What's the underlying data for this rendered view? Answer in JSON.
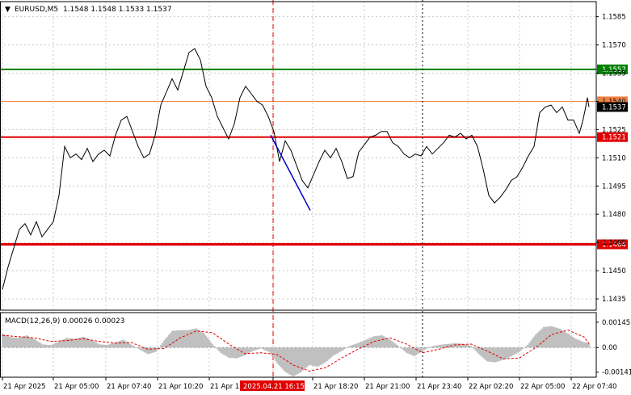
{
  "chart_data": [
    {
      "type": "line",
      "header": {
        "marker": "▼",
        "symbol": "EURUSD,M5",
        "ohlc": "1.1548 1.1548 1.1533 1.1537"
      },
      "price_axis": {
        "ticks": [
          "1.1585",
          "1.1570",
          "1.1555",
          "1.1540",
          "1.1525",
          "1.1510",
          "1.1495",
          "1.1480",
          "1.1465",
          "1.1450",
          "1.1435"
        ],
        "ylim": [
          1.1429,
          1.1593
        ]
      },
      "time_labels": [
        "21 Apr 2025",
        "21 Apr 05:00",
        "21 Apr 07:40",
        "21 Apr 10:20",
        "21 Apr 1",
        "2025.04.21 16:15",
        "21 Apr 18:20",
        "21 Apr 21:00",
        "21 Apr 23:40",
        "22 Apr 02:20",
        "22 Apr 05:00",
        "22 Apr 07:40"
      ],
      "cursor_time_label": "2025.04.21 16:15",
      "levels": [
        {
          "price": 1.1557,
          "label": "1.1557",
          "color": "#008000"
        },
        {
          "price": 1.154,
          "label": "1.1540",
          "color": "#f08040"
        },
        {
          "price": 1.1521,
          "label": "1.1521",
          "color": "#e00000"
        },
        {
          "price": 1.1464,
          "label": "1.1464",
          "color": "#e00000"
        }
      ],
      "current_price": {
        "price": 1.1537,
        "label": "1.1537"
      },
      "trend_line": {
        "from": {
          "bar": 335,
          "price": 1.1522
        },
        "to": {
          "bar": 384,
          "price": 1.1482
        },
        "color": "#0000cc"
      },
      "series": [
        {
          "name": "EURUSD,M5",
          "color": "#000000",
          "points": [
            [
              3,
              1.144
            ],
            [
              10,
              1.1452
            ],
            [
              17,
              1.1462
            ],
            [
              24,
              1.1472
            ],
            [
              31,
              1.1475
            ],
            [
              38,
              1.1469
            ],
            [
              45,
              1.1476
            ],
            [
              52,
              1.1468
            ],
            [
              59,
              1.1472
            ],
            [
              66,
              1.1476
            ],
            [
              73,
              1.149
            ],
            [
              80,
              1.1516
            ],
            [
              87,
              1.151
            ],
            [
              94,
              1.1512
            ],
            [
              101,
              1.1509
            ],
            [
              108,
              1.1515
            ],
            [
              115,
              1.1508
            ],
            [
              122,
              1.1512
            ],
            [
              129,
              1.1514
            ],
            [
              136,
              1.1511
            ],
            [
              143,
              1.1522
            ],
            [
              150,
              1.153
            ],
            [
              157,
              1.1532
            ],
            [
              164,
              1.1524
            ],
            [
              171,
              1.1516
            ],
            [
              178,
              1.151
            ],
            [
              185,
              1.1512
            ],
            [
              192,
              1.1522
            ],
            [
              199,
              1.1538
            ],
            [
              206,
              1.1545
            ],
            [
              213,
              1.1552
            ],
            [
              220,
              1.1546
            ],
            [
              227,
              1.1556
            ],
            [
              234,
              1.1566
            ],
            [
              241,
              1.1568
            ],
            [
              248,
              1.1562
            ],
            [
              255,
              1.1548
            ],
            [
              262,
              1.1542
            ],
            [
              269,
              1.1532
            ],
            [
              276,
              1.1526
            ],
            [
              283,
              1.152
            ],
            [
              290,
              1.1528
            ],
            [
              297,
              1.1542
            ],
            [
              304,
              1.1548
            ],
            [
              311,
              1.1544
            ],
            [
              318,
              1.154
            ],
            [
              325,
              1.1538
            ],
            [
              332,
              1.1532
            ],
            [
              339,
              1.1524
            ],
            [
              346,
              1.1508
            ],
            [
              353,
              1.1519
            ],
            [
              360,
              1.1514
            ],
            [
              367,
              1.1506
            ],
            [
              374,
              1.1498
            ],
            [
              381,
              1.1494
            ],
            [
              388,
              1.1501
            ],
            [
              395,
              1.1508
            ],
            [
              402,
              1.1514
            ],
            [
              409,
              1.151
            ],
            [
              416,
              1.1515
            ],
            [
              423,
              1.1508
            ],
            [
              430,
              1.1499
            ],
            [
              437,
              1.15
            ],
            [
              444,
              1.1513
            ],
            [
              451,
              1.1517
            ],
            [
              458,
              1.1521
            ],
            [
              465,
              1.1522
            ],
            [
              472,
              1.1524
            ],
            [
              479,
              1.1524
            ],
            [
              486,
              1.1518
            ],
            [
              493,
              1.1516
            ],
            [
              500,
              1.1512
            ],
            [
              507,
              1.151
            ],
            [
              514,
              1.1512
            ],
            [
              521,
              1.1511
            ],
            [
              528,
              1.1516
            ],
            [
              535,
              1.1512
            ],
            [
              542,
              1.1515
            ],
            [
              549,
              1.1518
            ],
            [
              556,
              1.1522
            ],
            [
              563,
              1.1521
            ],
            [
              570,
              1.1523
            ],
            [
              577,
              1.152
            ],
            [
              584,
              1.1522
            ],
            [
              591,
              1.1516
            ],
            [
              598,
              1.1504
            ],
            [
              605,
              1.149
            ],
            [
              612,
              1.1486
            ],
            [
              619,
              1.1489
            ],
            [
              626,
              1.1493
            ],
            [
              633,
              1.1498
            ],
            [
              640,
              1.15
            ],
            [
              647,
              1.1505
            ],
            [
              654,
              1.1511
            ],
            [
              661,
              1.1516
            ],
            [
              668,
              1.1534
            ],
            [
              675,
              1.1537
            ],
            [
              682,
              1.1538
            ],
            [
              689,
              1.1534
            ],
            [
              696,
              1.1537
            ],
            [
              703,
              1.153
            ],
            [
              710,
              1.153
            ],
            [
              717,
              1.1523
            ],
            [
              721,
              1.1529
            ],
            [
              724,
              1.1535
            ],
            [
              727,
              1.1542
            ],
            [
              729,
              1.1537
            ]
          ]
        }
      ]
    },
    {
      "type": "bar",
      "title": "MACD(12,26,9) 0.00026 0.00023",
      "y_ticks": [
        "0.00145",
        "0.00",
        "-0.00141"
      ],
      "ylim": [
        -0.0017,
        0.002
      ],
      "zero_line": 0,
      "series": [
        {
          "name": "MACD(12,26,9)",
          "color": "#c0c0c0",
          "points": [
            [
              3,
              0.00078
            ],
            [
              13,
              0.0006
            ],
            [
              23,
              0.00055
            ],
            [
              33,
              0.0007
            ],
            [
              43,
              0.00047
            ],
            [
              53,
              0.00018
            ],
            [
              63,
              0.00014
            ],
            [
              73,
              0.00035
            ],
            [
              83,
              0.00055
            ],
            [
              93,
              0.0005
            ],
            [
              103,
              0.00062
            ],
            [
              113,
              0.00045
            ],
            [
              123,
              0.00018
            ],
            [
              133,
              0.00015
            ],
            [
              143,
              0.0003
            ],
            [
              153,
              0.00045
            ],
            [
              163,
              0.00015
            ],
            [
              173,
              -0.00012
            ],
            [
              183,
              -0.00038
            ],
            [
              193,
              -0.00025
            ],
            [
              203,
              0.0004
            ],
            [
              213,
              0.00095
            ],
            [
              223,
              0.001
            ],
            [
              233,
              0.001
            ],
            [
              243,
              0.0011
            ],
            [
              253,
              0.0008
            ],
            [
              263,
              0.0002
            ],
            [
              273,
              -0.0003
            ],
            [
              283,
              -0.00058
            ],
            [
              293,
              -0.00062
            ],
            [
              303,
              -0.00045
            ],
            [
              313,
              -0.0002
            ],
            [
              323,
              -5e-05
            ],
            [
              333,
              -0.00025
            ],
            [
              343,
              -0.0009
            ],
            [
              353,
              -0.0014
            ],
            [
              363,
              -0.00165
            ],
            [
              373,
              -0.0014
            ],
            [
              383,
              -0.001
            ],
            [
              393,
              -0.0011
            ],
            [
              403,
              -0.00085
            ],
            [
              413,
              -0.00045
            ],
            [
              423,
              -0.0002
            ],
            [
              433,
              0.0001
            ],
            [
              443,
              0.00025
            ],
            [
              453,
              0.00045
            ],
            [
              463,
              0.00065
            ],
            [
              473,
              0.0007
            ],
            [
              483,
              0.00045
            ],
            [
              493,
              0.0001
            ],
            [
              503,
              -0.0003
            ],
            [
              513,
              -0.0005
            ],
            [
              523,
              -0.0002
            ],
            [
              533,
              5e-05
            ],
            [
              543,
              0.00015
            ],
            [
              553,
              0.0002
            ],
            [
              563,
              0.00025
            ],
            [
              573,
              0.00022
            ],
            [
              583,
              0.0001
            ],
            [
              593,
              -0.0004
            ],
            [
              603,
              -0.0008
            ],
            [
              613,
              -0.00085
            ],
            [
              623,
              -0.0007
            ],
            [
              633,
              -0.0005
            ],
            [
              643,
              -0.00025
            ],
            [
              653,
              0.00015
            ],
            [
              663,
              0.00075
            ],
            [
              673,
              0.00118
            ],
            [
              683,
              0.00122
            ],
            [
              693,
              0.00108
            ],
            [
              703,
              0.0008
            ],
            [
              713,
              0.0005
            ],
            [
              723,
              0.0003
            ],
            [
              729,
              0.00026
            ]
          ]
        },
        {
          "name": "Signal",
          "color": "#e00000",
          "points": [
            [
              3,
              0.0007
            ],
            [
              23,
              0.00062
            ],
            [
              43,
              0.00055
            ],
            [
              63,
              0.00035
            ],
            [
              83,
              0.0004
            ],
            [
              103,
              0.0005
            ],
            [
              123,
              0.00035
            ],
            [
              143,
              0.00025
            ],
            [
              163,
              0.00028
            ],
            [
              183,
              -0.0001
            ],
            [
              203,
              -5e-05
            ],
            [
              223,
              0.00055
            ],
            [
              243,
              0.00095
            ],
            [
              263,
              0.00085
            ],
            [
              283,
              0.0002
            ],
            [
              303,
              -0.00035
            ],
            [
              323,
              -0.0003
            ],
            [
              343,
              -0.0004
            ],
            [
              363,
              -0.001
            ],
            [
              383,
              -0.00135
            ],
            [
              403,
              -0.00115
            ],
            [
              423,
              -0.0006
            ],
            [
              443,
              -0.0001
            ],
            [
              463,
              0.00035
            ],
            [
              483,
              0.00055
            ],
            [
              503,
              0.0002
            ],
            [
              523,
              -0.0003
            ],
            [
              543,
              -0.0001
            ],
            [
              563,
              0.00015
            ],
            [
              583,
              0.0002
            ],
            [
              603,
              -0.0002
            ],
            [
              623,
              -0.00065
            ],
            [
              643,
              -0.0006
            ],
            [
              663,
              0.0
            ],
            [
              683,
              0.00075
            ],
            [
              703,
              0.001
            ],
            [
              723,
              0.0006
            ],
            [
              729,
              0.00023
            ]
          ]
        }
      ]
    }
  ]
}
